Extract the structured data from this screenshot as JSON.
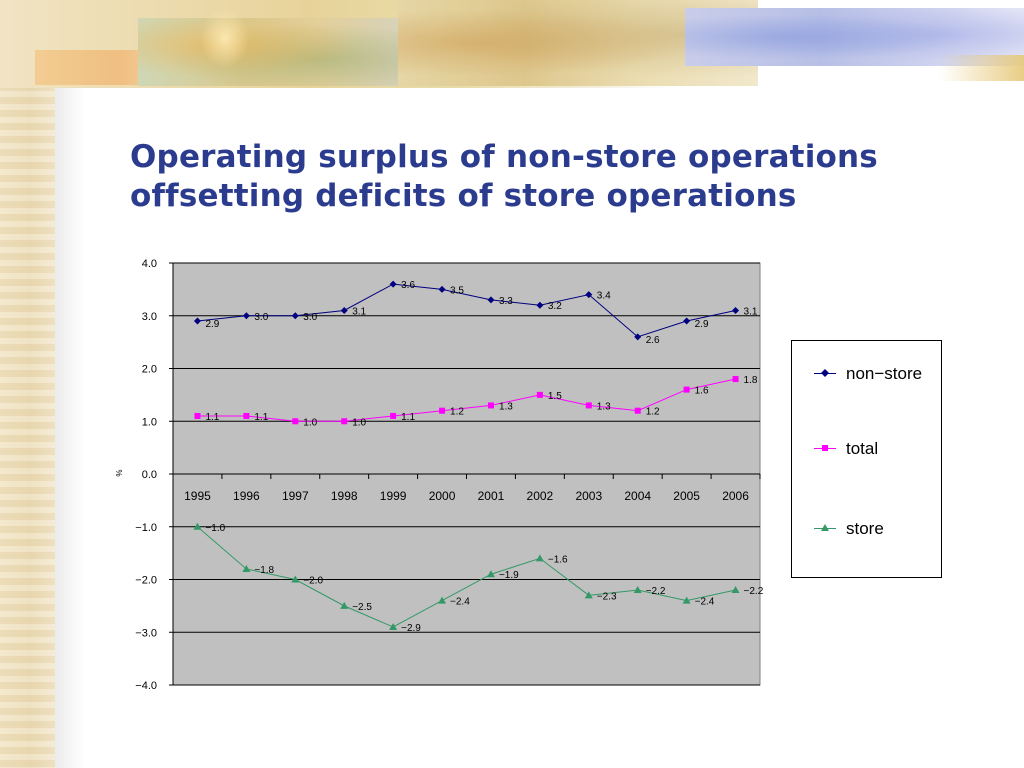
{
  "slide": {
    "title_lines": [
      "Operating surplus of non-store operations",
      "offsetting deficits of store operations"
    ]
  },
  "chart_data": {
    "type": "line",
    "title": "",
    "xlabel": "",
    "ylabel": "%",
    "categories": [
      "1995",
      "1996",
      "1997",
      "1998",
      "1999",
      "2000",
      "2001",
      "2002",
      "2003",
      "2004",
      "2005",
      "2006"
    ],
    "ylim": [
      -4.0,
      4.0
    ],
    "yticks": [
      4.0,
      3.0,
      2.0,
      1.0,
      0.0,
      -1.0,
      -2.0,
      -3.0,
      -4.0
    ],
    "ytick_labels": [
      "4.0",
      "3.0",
      "2.0",
      "1.0",
      "0.0",
      "−1.0",
      "−2.0",
      "−3.0",
      "−4.0"
    ],
    "grid": true,
    "plot_background": "#c0c0c0",
    "legend_placement": "right",
    "series": [
      {
        "name": "non−store",
        "color": "#000080",
        "marker": "diamond",
        "values": [
          2.9,
          3.0,
          3.0,
          3.1,
          3.6,
          3.5,
          3.3,
          3.2,
          3.4,
          2.6,
          2.9,
          3.1
        ],
        "labels": [
          "2.9",
          "3.0",
          "3.0",
          "3.1",
          "3.6",
          "3.5",
          "3.3",
          "3.2",
          "3.4",
          "2.6",
          "2.9",
          "3.1"
        ]
      },
      {
        "name": "total",
        "color": "#ff00ff",
        "marker": "square",
        "values": [
          1.1,
          1.1,
          1.0,
          1.0,
          1.1,
          1.2,
          1.3,
          1.5,
          1.3,
          1.2,
          1.6,
          1.8
        ],
        "labels": [
          "1.1",
          "1.1",
          "1.0",
          "1.0",
          "1.1",
          "1.2",
          "1.3",
          "1.5",
          "1.3",
          "1.2",
          "1.6",
          "1.8"
        ]
      },
      {
        "name": "store",
        "color": "#339966",
        "marker": "triangle",
        "values": [
          -1.0,
          -1.8,
          -2.0,
          -2.5,
          -2.9,
          -2.4,
          -1.9,
          -1.6,
          -2.3,
          -2.2,
          -2.4,
          -2.2
        ],
        "labels": [
          "−1.0",
          "−1.8",
          "−2.0",
          "−2.5",
          "−2.9",
          "−2.4",
          "−1.9",
          "−1.6",
          "−2.3",
          "−2.2",
          "−2.4",
          "−2.2"
        ]
      }
    ]
  }
}
